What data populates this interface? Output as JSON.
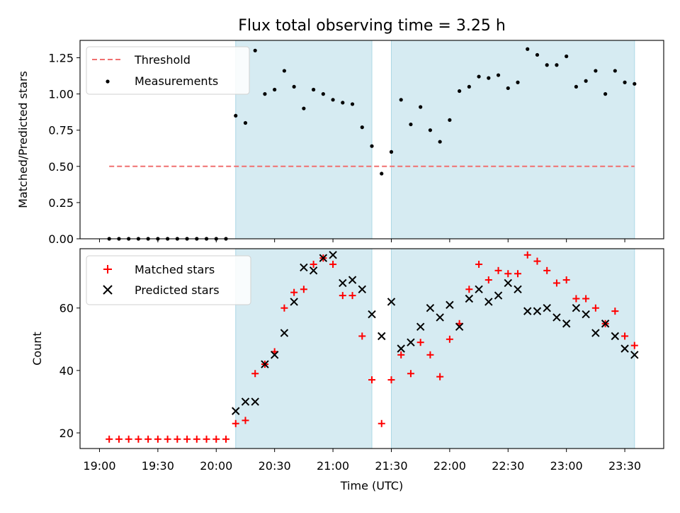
{
  "figure": {
    "title": "Flux total observing time = 3.25 h"
  },
  "chart_data": [
    {
      "type": "scatter",
      "panel": "top",
      "ylabel": "Matched/Predicted stars",
      "xlabel": "",
      "ylim": [
        0,
        1.37
      ],
      "yticks": [
        "0.00",
        "0.25",
        "0.50",
        "0.75",
        "1.00",
        "1.25"
      ],
      "ytick_values": [
        0,
        0.25,
        0.5,
        0.75,
        1.0,
        1.25
      ],
      "legend": [
        "Threshold",
        "Measurements"
      ],
      "legend_position": "top-left",
      "threshold": {
        "name": "Threshold",
        "value": 0.5,
        "color": "#f07070",
        "style": "dashed"
      },
      "series": [
        {
          "name": "Measurements",
          "color": "#000000",
          "x": [
            "19:05",
            "19:10",
            "19:15",
            "19:20",
            "19:25",
            "19:30",
            "19:35",
            "19:40",
            "19:45",
            "19:50",
            "19:55",
            "20:00",
            "20:05",
            "20:10",
            "20:15",
            "20:20",
            "20:25",
            "20:30",
            "20:35",
            "20:40",
            "20:45",
            "20:50",
            "20:55",
            "21:00",
            "21:05",
            "21:10",
            "21:15",
            "21:20",
            "21:25",
            "21:30",
            "21:35",
            "21:40",
            "21:45",
            "21:50",
            "21:55",
            "22:00",
            "22:05",
            "22:10",
            "22:15",
            "22:20",
            "22:25",
            "22:30",
            "22:35",
            "22:40",
            "22:45",
            "22:50",
            "22:55",
            "23:00",
            "23:05",
            "23:10",
            "23:15",
            "23:20",
            "23:25",
            "23:30",
            "23:35"
          ],
          "y": [
            0,
            0,
            0,
            0,
            0,
            0,
            0,
            0,
            0,
            0,
            0,
            0,
            0,
            0.85,
            0.8,
            1.3,
            1.0,
            1.03,
            1.16,
            1.05,
            0.9,
            1.03,
            1.0,
            0.96,
            0.94,
            0.93,
            0.77,
            0.64,
            0.45,
            0.6,
            0.96,
            0.79,
            0.91,
            0.75,
            0.67,
            0.82,
            1.02,
            1.05,
            1.12,
            1.11,
            1.13,
            1.04,
            1.08,
            1.31,
            1.27,
            1.2,
            1.2,
            1.26,
            1.05,
            1.09,
            1.16,
            1.0,
            1.16,
            1.08,
            1.07
          ]
        }
      ],
      "observing_windows": [
        [
          "20:10",
          "21:20"
        ],
        [
          "21:30",
          "23:35"
        ]
      ],
      "window_color": "#add8e6"
    },
    {
      "type": "scatter",
      "panel": "bottom",
      "ylabel": "Count",
      "xlabel": "Time (UTC)",
      "ylim": [
        15,
        79
      ],
      "yticks": [
        "20",
        "40",
        "60"
      ],
      "ytick_values": [
        20,
        40,
        60
      ],
      "xlim": [
        "18:50",
        "23:50"
      ],
      "xticks": [
        "19:00",
        "19:30",
        "20:00",
        "20:30",
        "21:00",
        "21:30",
        "22:00",
        "22:30",
        "23:00",
        "23:30"
      ],
      "legend": [
        "Matched stars",
        "Predicted stars"
      ],
      "legend_position": "top-left",
      "series": [
        {
          "name": "Matched stars",
          "marker": "plus",
          "color": "#ff0000",
          "x": [
            "19:05",
            "19:10",
            "19:15",
            "19:20",
            "19:25",
            "19:30",
            "19:35",
            "19:40",
            "19:45",
            "19:50",
            "19:55",
            "20:00",
            "20:05",
            "20:10",
            "20:15",
            "20:20",
            "20:25",
            "20:30",
            "20:35",
            "20:40",
            "20:45",
            "20:50",
            "20:55",
            "21:00",
            "21:05",
            "21:10",
            "21:15",
            "21:20",
            "21:25",
            "21:30",
            "21:35",
            "21:40",
            "21:45",
            "21:50",
            "21:55",
            "22:00",
            "22:05",
            "22:10",
            "22:15",
            "22:20",
            "22:25",
            "22:30",
            "22:35",
            "22:40",
            "22:45",
            "22:50",
            "22:55",
            "23:00",
            "23:05",
            "23:10",
            "23:15",
            "23:20",
            "23:25",
            "23:30",
            "23:35"
          ],
          "y": [
            18,
            18,
            18,
            18,
            18,
            18,
            18,
            18,
            18,
            18,
            18,
            18,
            18,
            23,
            24,
            39,
            42,
            46,
            60,
            65,
            66,
            74,
            76,
            74,
            64,
            64,
            51,
            37,
            23,
            37,
            45,
            39,
            49,
            45,
            38,
            50,
            55,
            66,
            74,
            69,
            72,
            71,
            71,
            77,
            75,
            72,
            68,
            69,
            63,
            63,
            60,
            55,
            59,
            51,
            48
          ]
        },
        {
          "name": "Predicted stars",
          "marker": "x",
          "color": "#000000",
          "x": [
            "20:10",
            "20:15",
            "20:20",
            "20:25",
            "20:30",
            "20:35",
            "20:40",
            "20:45",
            "20:50",
            "20:55",
            "21:00",
            "21:05",
            "21:10",
            "21:15",
            "21:20",
            "21:25",
            "21:30",
            "21:35",
            "21:40",
            "21:45",
            "21:50",
            "21:55",
            "22:00",
            "22:05",
            "22:10",
            "22:15",
            "22:20",
            "22:25",
            "22:30",
            "22:35",
            "22:40",
            "22:45",
            "22:50",
            "22:55",
            "23:00",
            "23:05",
            "23:10",
            "23:15",
            "23:20",
            "23:25",
            "23:30",
            "23:35"
          ],
          "y": [
            27,
            30,
            30,
            42,
            45,
            52,
            62,
            73,
            72,
            76,
            77,
            68,
            69,
            66,
            58,
            51,
            62,
            47,
            49,
            54,
            60,
            57,
            61,
            54,
            63,
            66,
            62,
            64,
            68,
            66,
            59,
            59,
            60,
            57,
            55,
            60,
            58,
            52,
            55,
            51,
            47,
            45
          ]
        }
      ],
      "observing_windows": [
        [
          "20:10",
          "21:20"
        ],
        [
          "21:30",
          "23:35"
        ]
      ],
      "window_color": "#add8e6"
    }
  ]
}
